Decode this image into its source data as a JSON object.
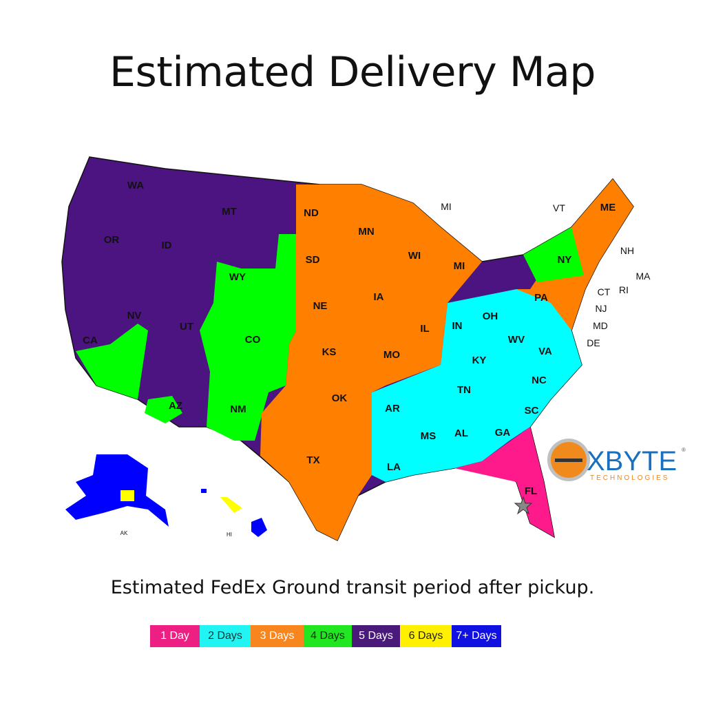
{
  "title": "Estimated Delivery Map",
  "subtitle": "Estimated FedEx Ground transit period after pickup.",
  "colors": {
    "1day": "#ff1a8c",
    "2days": "#00ffff",
    "3days": "#ff8000",
    "4days": "#00ff00",
    "5days": "#4b1480",
    "6days": "#ffff00",
    "7days": "#0000ff"
  },
  "legend": [
    {
      "label": "1 Day",
      "color": "#ee1f82",
      "text": "#ffffff"
    },
    {
      "label": "2 Days",
      "color": "#22f4f4",
      "text": "#1a3030"
    },
    {
      "label": "3 Days",
      "color": "#f7861e",
      "text": "#ffffff"
    },
    {
      "label": "4 Days",
      "color": "#22e622",
      "text": "#103010"
    },
    {
      "label": "5 Days",
      "color": "#4a1a7a",
      "text": "#ffffff"
    },
    {
      "label": "6 Days",
      "color": "#fff000",
      "text": "#222222"
    },
    {
      "label": "7+ Days",
      "color": "#1010e0",
      "text": "#ffffff"
    }
  ],
  "states": [
    "WA",
    "MT",
    "ND",
    "MN",
    "MI",
    "VT",
    "ME",
    "OR",
    "ID",
    "SD",
    "WI",
    "MI",
    "NY",
    "NH",
    "MA",
    "WY",
    "IA",
    "PA",
    "CT",
    "RI",
    "NJ",
    "NV",
    "NE",
    "IL",
    "IN",
    "OH",
    "MD",
    "UT",
    "CO",
    "WV",
    "DE",
    "CA",
    "KS",
    "MO",
    "KY",
    "VA",
    "TN",
    "NC",
    "OK",
    "AR",
    "SC",
    "AZ",
    "NM",
    "MS",
    "AL",
    "GA",
    "TX",
    "LA",
    "FL",
    "AK",
    "HI"
  ],
  "logo": {
    "name": "XBYTE",
    "tagline": "TECHNOLOGIES",
    "registered": "®"
  }
}
